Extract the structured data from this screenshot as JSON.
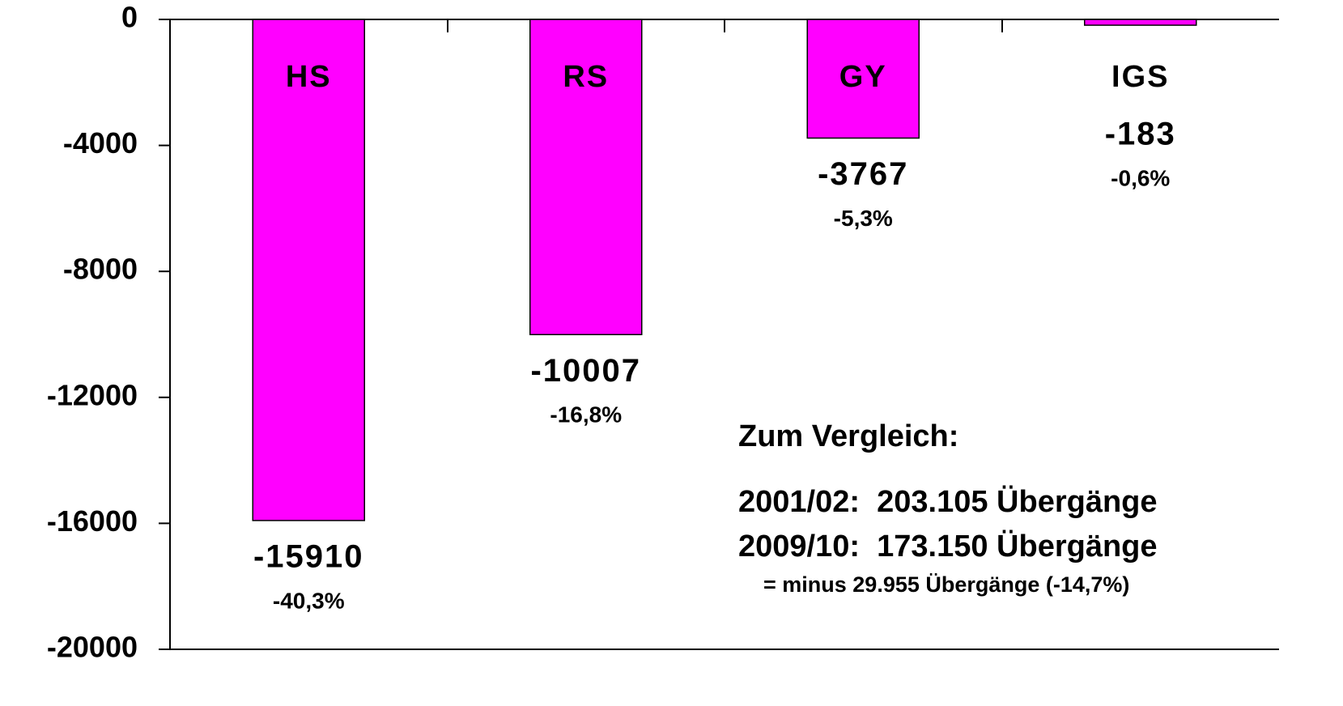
{
  "chart_data": {
    "type": "bar",
    "categories": [
      "HS",
      "RS",
      "GY",
      "IGS"
    ],
    "values": [
      -15910,
      -10007,
      -3767,
      -183
    ],
    "percent_labels": [
      "-40,3%",
      "-16,8%",
      "-5,3%",
      "-0,6%"
    ],
    "color": "#ff00ff",
    "ylim": [
      -20000,
      0
    ],
    "yticks": [
      0,
      -4000,
      -8000,
      -12000,
      -16000,
      -20000
    ],
    "annotations": [
      "Zum Vergleich:",
      "2001/02:  203.105 Übergänge",
      "2009/10:  173.150 Übergänge",
      "= minus 29.955 Übergänge (-14,7%)"
    ]
  }
}
